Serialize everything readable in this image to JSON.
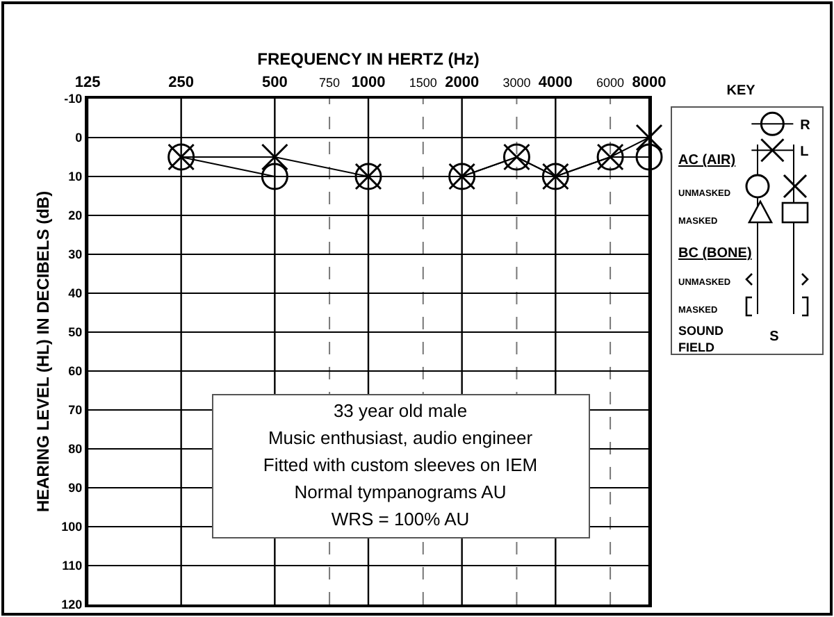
{
  "chart_data": {
    "type": "line",
    "xlabel": "FREQUENCY IN HERTZ (Hz)",
    "ylabel": "HEARING LEVEL (HL) IN DECIBELS (dB)",
    "x": [
      250,
      500,
      1000,
      2000,
      3000,
      4000,
      6000,
      8000
    ],
    "xlim": [
      125,
      8000
    ],
    "xticks": [
      125,
      250,
      500,
      750,
      1000,
      1500,
      2000,
      3000,
      4000,
      6000,
      8000
    ],
    "ylim": [
      120,
      -10
    ],
    "yticks": [
      -10,
      0,
      10,
      20,
      30,
      40,
      50,
      60,
      70,
      80,
      90,
      100,
      110,
      120
    ],
    "series": [
      {
        "name": "R",
        "color": "#000000",
        "marker": "circle",
        "values": [
          5,
          10,
          10,
          10,
          5,
          10,
          5,
          5
        ]
      },
      {
        "name": "L",
        "color": "#000000",
        "marker": "cross",
        "values": [
          5,
          5,
          10,
          10,
          5,
          10,
          5,
          0
        ]
      }
    ],
    "legend_title": "KEY",
    "legend": "right",
    "grid": true,
    "log": "x",
    "line_style": "solid",
    "annotations": [
      "33 year old male\nMusic enthusiast, audio engineer\nFitted with custom sleeves on IEM\nNormal tympanograms AU\nWRS = 100% AU",
      "AC (AIR)",
      "UNMASKED",
      "MASKED",
      "BC (BONE)",
      "UNMASKED",
      "MASKED",
      "SOUND FIELD",
      "S"
    ]
  }
}
